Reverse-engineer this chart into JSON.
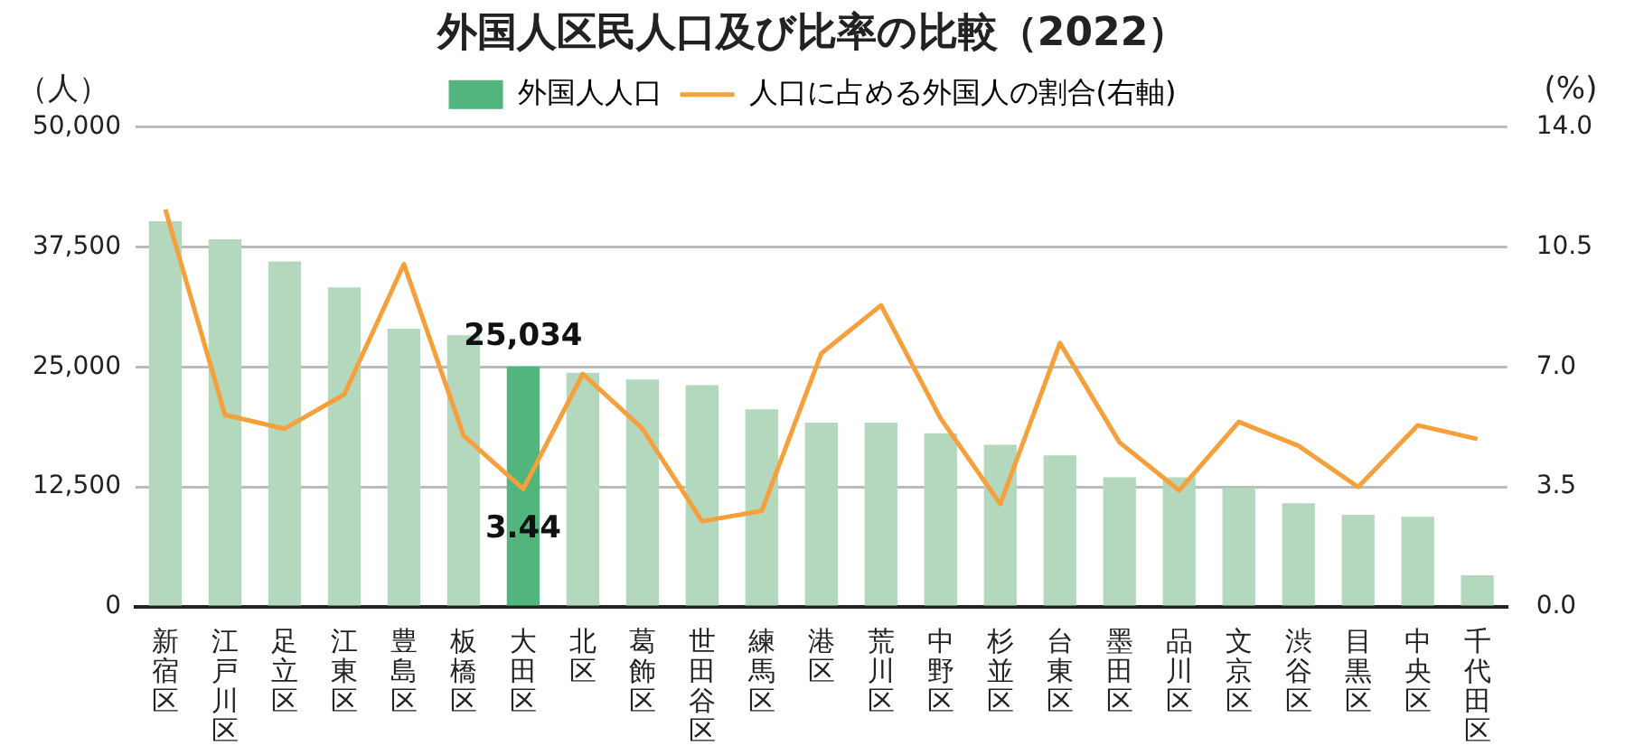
{
  "chart_data": {
    "type": "bar",
    "title": "外国人区民人口及び比率の比較（2022）",
    "ylabel": "（人）",
    "y2label": "(%)",
    "categories": [
      "新宿区",
      "江戸川区",
      "足立区",
      "江東区",
      "豊島区",
      "板橋区",
      "大田区",
      "北区",
      "葛飾区",
      "世田谷区",
      "練馬区",
      "港区",
      "荒川区",
      "中野区",
      "杉並区",
      "台東区",
      "墨田区",
      "品川区",
      "文京区",
      "渋谷区",
      "目黒区",
      "中央区",
      "千代田区"
    ],
    "series": [
      {
        "name": "外国人人口",
        "color": "#52b57d",
        "colors": [
          "#b3d8be",
          "#b3d8be",
          "#b3d8be",
          "#b3d8be",
          "#b3d8be",
          "#b3d8be",
          "#52b57d",
          "#b3d8be",
          "#b3d8be",
          "#b3d8be",
          "#b3d8be",
          "#b3d8be",
          "#b3d8be",
          "#b3d8be",
          "#b3d8be",
          "#b3d8be",
          "#b3d8be",
          "#b3d8be",
          "#b3d8be",
          "#b3d8be",
          "#b3d8be",
          "#b3d8be",
          "#b3d8be"
        ],
        "values": [
          40200,
          38300,
          36000,
          33300,
          29000,
          28300,
          25034,
          24400,
          23700,
          23100,
          20600,
          19200,
          19200,
          18100,
          16900,
          15800,
          13500,
          13500,
          12400,
          10800,
          9600,
          9400,
          3300
        ],
        "value_labels": [
          null,
          null,
          null,
          null,
          null,
          null,
          "25,034",
          null,
          null,
          null,
          null,
          null,
          null,
          null,
          null,
          null,
          null,
          null,
          null,
          null,
          null,
          null,
          null
        ]
      },
      {
        "name": "人口に占める外国人の割合(右軸)",
        "type": "line",
        "axis": "y2",
        "color": "#f6a03c",
        "values": [
          11.6,
          5.6,
          5.2,
          6.2,
          10.0,
          5.0,
          3.44,
          6.8,
          5.2,
          2.5,
          2.8,
          7.4,
          8.8,
          5.5,
          3.0,
          7.7,
          4.8,
          3.4,
          5.4,
          4.7,
          3.5,
          5.3,
          4.9
        ],
        "value_labels": [
          null,
          null,
          null,
          null,
          null,
          null,
          "3.44",
          null,
          null,
          null,
          null,
          null,
          null,
          null,
          null,
          null,
          null,
          null,
          null,
          null,
          null,
          null,
          null
        ]
      }
    ],
    "ylim": [
      0,
      50000
    ],
    "yticks": [
      {
        "value": 0,
        "label": "0"
      },
      {
        "value": 12500,
        "label": "12,500"
      },
      {
        "value": 25000,
        "label": "25,000"
      },
      {
        "value": 37500,
        "label": "37,500"
      },
      {
        "value": 50000,
        "label": "50,000"
      }
    ],
    "y2lim": [
      0,
      14
    ],
    "y2ticks": [
      {
        "value": 0,
        "label": "0.0"
      },
      {
        "value": 3.5,
        "label": "3.5"
      },
      {
        "value": 7,
        "label": "7.0"
      },
      {
        "value": 10.5,
        "label": "10.5"
      },
      {
        "value": 14,
        "label": "14.0"
      }
    ],
    "grid": "y",
    "legend": "top",
    "marker": "none"
  }
}
